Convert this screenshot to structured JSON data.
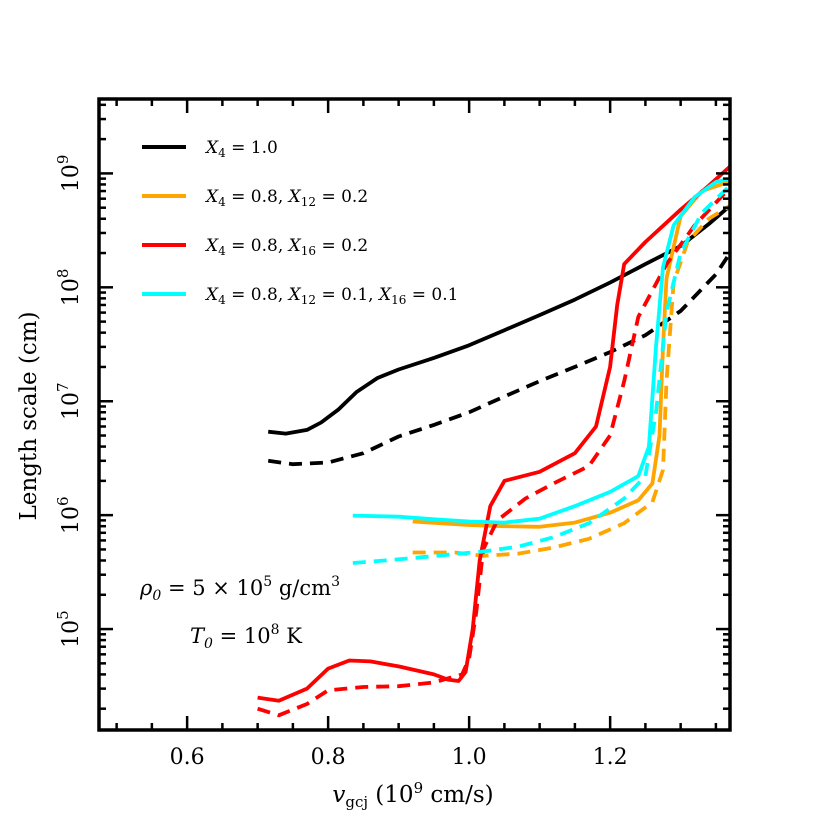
{
  "chart_data": {
    "type": "line",
    "xlabel": "v_gcj (10^9 cm/s)",
    "ylabel": "Length scale (cm)",
    "xlim": [
      0.475,
      1.37
    ],
    "ylim": [
      13000,
      4500000000
    ],
    "yscale": "log",
    "grid": false,
    "legend_position": "top-left",
    "x_ticks": [
      {
        "value": 0.6,
        "label": "0.6"
      },
      {
        "value": 0.8,
        "label": "0.8"
      },
      {
        "value": 1.0,
        "label": "1.0"
      },
      {
        "value": 1.2,
        "label": "1.2"
      }
    ],
    "y_ticks": [
      {
        "value": 100000,
        "label": "10^5",
        "base": "10",
        "exp": "5"
      },
      {
        "value": 1000000,
        "label": "10^6",
        "base": "10",
        "exp": "6"
      },
      {
        "value": 10000000,
        "label": "10^7",
        "base": "10",
        "exp": "7"
      },
      {
        "value": 100000000,
        "label": "10^8",
        "base": "10",
        "exp": "8"
      },
      {
        "value": 1000000000,
        "label": "10^9",
        "base": "10",
        "exp": "9"
      }
    ],
    "annotations": [
      {
        "text": "ρ0 = 5 × 10^5 g/cm^3"
      },
      {
        "text": "T0 = 10^8 K"
      }
    ],
    "series": [
      {
        "name": "X4 = 1.0",
        "color": "#000000",
        "style": "solid",
        "x": [
          0.715,
          0.74,
          0.77,
          0.79,
          0.815,
          0.84,
          0.87,
          0.9,
          0.95,
          1.0,
          1.05,
          1.1,
          1.15,
          1.2,
          1.25,
          1.3,
          1.34,
          1.37
        ],
        "y": [
          5400000,
          5200000,
          5600000,
          6500000,
          8500000,
          12000000,
          16000000,
          19000000,
          24000000,
          31000000,
          42000000,
          57000000,
          78000000,
          110000000,
          160000000,
          230000000,
          360000000,
          520000000
        ]
      },
      {
        "name": "X4 = 1.0",
        "color": "#000000",
        "style": "dashed",
        "x": [
          0.715,
          0.75,
          0.8,
          0.85,
          0.9,
          0.95,
          1.0,
          1.05,
          1.1,
          1.15,
          1.2,
          1.25,
          1.3,
          1.35,
          1.37
        ],
        "y": [
          3000000,
          2800000,
          2900000,
          3500000,
          4900000,
          6200000,
          8000000,
          11000000,
          15000000,
          20000000,
          27000000,
          38000000,
          62000000,
          130000000,
          200000000
        ]
      },
      {
        "name": "X4 = 0.8, X12 = 0.2",
        "color": "#ffa500",
        "style": "solid",
        "x": [
          0.92,
          1.0,
          1.05,
          1.1,
          1.15,
          1.2,
          1.24,
          1.26,
          1.27,
          1.275,
          1.28,
          1.3,
          1.33,
          1.37
        ],
        "y": [
          880000,
          820000,
          800000,
          790000,
          860000,
          1050000,
          1350000,
          1900000,
          5000000,
          30000000,
          120000000,
          420000000,
          700000000,
          850000000
        ]
      },
      {
        "name": "X4 = 0.8, X12 = 0.2",
        "color": "#ffa500",
        "style": "dashed",
        "x": [
          0.92,
          0.98,
          1.02,
          1.07,
          1.12,
          1.17,
          1.22,
          1.26,
          1.275,
          1.28,
          1.29,
          1.31,
          1.34,
          1.37
        ],
        "y": [
          470000,
          470000,
          440000,
          460000,
          520000,
          620000,
          850000,
          1300000,
          2500000,
          15000000,
          110000000,
          250000000,
          400000000,
          520000000
        ]
      },
      {
        "name": "X4 = 0.8, X16 = 0.2",
        "color": "#ff0000",
        "style": "solid",
        "x": [
          0.7,
          0.73,
          0.77,
          0.8,
          0.83,
          0.86,
          0.9,
          0.95,
          0.97,
          0.985,
          0.995,
          1.005,
          1.015,
          1.03,
          1.05,
          1.1,
          1.15,
          1.18,
          1.2,
          1.21,
          1.22,
          1.25,
          1.3,
          1.34,
          1.37
        ],
        "y": [
          25000,
          23500,
          30000,
          45000,
          53000,
          52000,
          47000,
          40000,
          36000,
          35000,
          42000,
          100000,
          400000,
          1200000,
          2000000,
          2400000,
          3500000,
          6000000,
          20000000,
          70000000,
          160000000,
          250000000,
          480000000,
          780000000,
          1150000000
        ]
      },
      {
        "name": "X4 = 0.8, X16 = 0.2",
        "color": "#ff0000",
        "style": "dashed",
        "x": [
          0.7,
          0.73,
          0.77,
          0.8,
          0.85,
          0.9,
          0.95,
          0.99,
          1.0,
          1.01,
          1.02,
          1.04,
          1.08,
          1.12,
          1.17,
          1.2,
          1.22,
          1.24,
          1.28,
          1.32,
          1.37
        ],
        "y": [
          20000,
          17500,
          22000,
          29000,
          31000,
          31500,
          34000,
          40000,
          55000,
          140000,
          500000,
          900000,
          1400000,
          1900000,
          2700000,
          5000000,
          15000000,
          55000000,
          160000000,
          350000000,
          750000000
        ]
      },
      {
        "name": "X4 = 0.8, X12 = 0.1, X16 = 0.1",
        "color": "#00ffff",
        "style": "solid",
        "x": [
          0.835,
          0.9,
          0.95,
          1.0,
          1.05,
          1.1,
          1.15,
          1.2,
          1.24,
          1.255,
          1.265,
          1.275,
          1.29,
          1.32,
          1.35,
          1.37
        ],
        "y": [
          990000,
          970000,
          920000,
          880000,
          860000,
          930000,
          1200000,
          1600000,
          2200000,
          4000000,
          30000000,
          150000000,
          350000000,
          620000000,
          840000000,
          900000000
        ]
      },
      {
        "name": "X4 = 0.8, X12 = 0.1, X16 = 0.1",
        "color": "#00ffff",
        "style": "dashed",
        "x": [
          0.835,
          0.88,
          0.92,
          0.97,
          1.02,
          1.07,
          1.12,
          1.17,
          1.22,
          1.25,
          1.265,
          1.28,
          1.3,
          1.33,
          1.37
        ],
        "y": [
          380000,
          400000,
          420000,
          450000,
          480000,
          530000,
          640000,
          850000,
          1400000,
          2200000,
          8000000,
          60000000,
          200000000,
          450000000,
          780000000
        ]
      }
    ]
  },
  "legend": [
    {
      "color": "#000000",
      "base": "X",
      "parts": [
        {
          "sub": "4",
          "eq": " = 1.0"
        }
      ]
    },
    {
      "color": "#ffa500",
      "base": "X",
      "parts": [
        {
          "sub": "4",
          "eq": " = 0.8, "
        },
        {
          "sub": "12",
          "eq": " = 0.2"
        }
      ]
    },
    {
      "color": "#ff0000",
      "base": "X",
      "parts": [
        {
          "sub": "4",
          "eq": " = 0.8, "
        },
        {
          "sub": "16",
          "eq": " = 0.2"
        }
      ]
    },
    {
      "color": "#00ffff",
      "base": "X",
      "parts": [
        {
          "sub": "4",
          "eq": " = 0.8, "
        },
        {
          "sub": "12",
          "eq": " = 0.1, "
        },
        {
          "sub": "16",
          "eq": " = 0.1"
        }
      ]
    }
  ],
  "axis_text": {
    "x_var": "v",
    "x_sub": "gcj",
    "x_unit_open": " (10",
    "x_unit_exp": "9",
    "x_unit_close": " cm/s)",
    "y_title": "Length scale (cm)"
  },
  "annot_text": {
    "rho": "ρ",
    "rho_sub": "0",
    "rho_eq": " = 5 × 10",
    "rho_exp": "5",
    "rho_unit": " g/cm",
    "rho_unit_exp": "3",
    "t": "T",
    "t_sub": "0",
    "t_eq": " = 10",
    "t_exp": "8",
    "t_unit": " K"
  }
}
